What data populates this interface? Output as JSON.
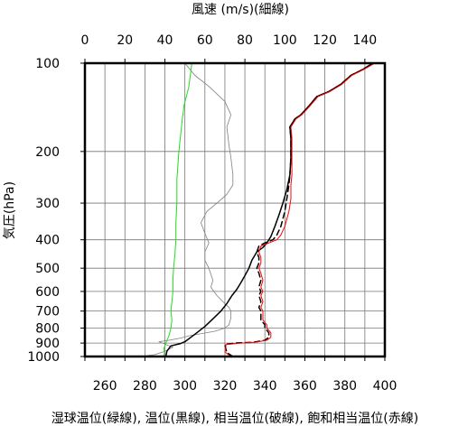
{
  "chart_data": {
    "type": "line",
    "title": "風速 (m/s)(細線)",
    "ylabel": "気圧(hPa)",
    "xlabel": "湿球温位(緑線), 温位(黒線), 相当温位(破線), 飽和相当温位(赤線)",
    "y_axis": {
      "scale": "log",
      "reversed": true,
      "ticks": [
        100,
        200,
        300,
        400,
        500,
        600,
        700,
        800,
        900,
        1000
      ],
      "ylim": [
        100,
        1000
      ]
    },
    "x_bottom": {
      "label_ticks": [
        260,
        280,
        300,
        320,
        340,
        360,
        380,
        400
      ],
      "grid_step": 10,
      "xlim": [
        250,
        400
      ]
    },
    "x_top": {
      "ticks": [
        0,
        20,
        40,
        60,
        80,
        100,
        120,
        140
      ],
      "xlim": [
        0,
        150
      ]
    },
    "grid": true,
    "series": [
      {
        "key": "wind",
        "axis": "top",
        "color": "#808080",
        "width": 0.8,
        "dash": "",
        "points": [
          [
            28,
            1000
          ],
          [
            35,
            985
          ],
          [
            40,
            960
          ],
          [
            44,
            930
          ],
          [
            37,
            890
          ],
          [
            42,
            880
          ],
          [
            48,
            865
          ],
          [
            52,
            850
          ],
          [
            65,
            820
          ],
          [
            70,
            800
          ],
          [
            72,
            780
          ],
          [
            73,
            740
          ],
          [
            73,
            700
          ],
          [
            72,
            680
          ],
          [
            70,
            660
          ],
          [
            66,
            620
          ],
          [
            63,
            580
          ],
          [
            64,
            550
          ],
          [
            62,
            500
          ],
          [
            60,
            470
          ],
          [
            60,
            440
          ],
          [
            62,
            410
          ],
          [
            60,
            380
          ],
          [
            58,
            350
          ],
          [
            61,
            320
          ],
          [
            66,
            300
          ],
          [
            71,
            280
          ],
          [
            74,
            260
          ],
          [
            74,
            240
          ],
          [
            73,
            210
          ],
          [
            72,
            190
          ],
          [
            71,
            165
          ],
          [
            73,
            150
          ],
          [
            70,
            135
          ],
          [
            62,
            120
          ],
          [
            55,
            110
          ],
          [
            50,
            100
          ]
        ]
      },
      {
        "key": "theta_w",
        "color": "#22dd22",
        "width": 1,
        "dash": "",
        "points": [
          [
            289.5,
            1000
          ],
          [
            289.8,
            970
          ],
          [
            289.5,
            940
          ],
          [
            290.5,
            900
          ],
          [
            292,
            850
          ],
          [
            293,
            800
          ],
          [
            293.5,
            750
          ],
          [
            293,
            700
          ],
          [
            293.5,
            650
          ],
          [
            294,
            600
          ],
          [
            294,
            550
          ],
          [
            294.3,
            500
          ],
          [
            295,
            450
          ],
          [
            295.5,
            400
          ],
          [
            295.5,
            350
          ],
          [
            296,
            300
          ],
          [
            296,
            250
          ],
          [
            297,
            200
          ],
          [
            298.5,
            160
          ],
          [
            299.5,
            140
          ],
          [
            302,
            120
          ],
          [
            303.5,
            100
          ]
        ]
      },
      {
        "key": "theta",
        "color": "#000000",
        "width": 1.5,
        "dash": "",
        "points": [
          [
            290.5,
            1000
          ],
          [
            291,
            960
          ],
          [
            293,
            920
          ],
          [
            297.5,
            905
          ],
          [
            300,
            890
          ],
          [
            303,
            860
          ],
          [
            306,
            830
          ],
          [
            310,
            790
          ],
          [
            313.5,
            750
          ],
          [
            318,
            700
          ],
          [
            321,
            660
          ],
          [
            323.5,
            620
          ],
          [
            326,
            590
          ],
          [
            328,
            560
          ],
          [
            330,
            530
          ],
          [
            332,
            500
          ],
          [
            333.5,
            470
          ],
          [
            336,
            440
          ],
          [
            339,
            425
          ],
          [
            341,
            410
          ],
          [
            343,
            390
          ],
          [
            345,
            360
          ],
          [
            347,
            330
          ],
          [
            349,
            300
          ],
          [
            351,
            270
          ],
          [
            352.5,
            240
          ],
          [
            353,
            210
          ],
          [
            353,
            180
          ],
          [
            352.5,
            165
          ],
          [
            355,
            155
          ],
          [
            358,
            150
          ],
          [
            362,
            140
          ],
          [
            366,
            130
          ],
          [
            372,
            125
          ],
          [
            378,
            118
          ],
          [
            383,
            110
          ],
          [
            389,
            105
          ],
          [
            394,
            100
          ]
        ]
      },
      {
        "key": "theta_e",
        "color": "#000000",
        "width": 1.5,
        "dash": "6,4",
        "points": [
          [
            324,
            1000
          ],
          [
            321,
            970
          ],
          [
            320.5,
            940
          ],
          [
            320,
            910
          ],
          [
            325,
            900
          ],
          [
            334,
            895
          ],
          [
            340,
            880
          ],
          [
            342,
            860
          ],
          [
            342,
            830
          ],
          [
            340,
            800
          ],
          [
            340,
            780
          ],
          [
            338,
            750
          ],
          [
            338,
            700
          ],
          [
            337,
            680
          ],
          [
            338,
            650
          ],
          [
            337,
            620
          ],
          [
            338,
            600
          ],
          [
            337,
            580
          ],
          [
            338,
            550
          ],
          [
            337,
            520
          ],
          [
            336,
            500
          ],
          [
            337,
            480
          ],
          [
            337,
            460
          ],
          [
            336,
            440
          ],
          [
            337,
            420
          ],
          [
            340,
            410
          ],
          [
            344,
            400
          ],
          [
            346,
            385
          ],
          [
            348,
            360
          ],
          [
            350,
            320
          ],
          [
            351,
            290
          ],
          [
            352,
            260
          ],
          [
            352.5,
            240
          ],
          [
            353,
            210
          ],
          [
            353,
            180
          ],
          [
            352.5,
            165
          ],
          [
            355,
            155
          ],
          [
            358,
            150
          ],
          [
            362,
            140
          ],
          [
            366,
            130
          ],
          [
            372,
            125
          ],
          [
            378,
            118
          ],
          [
            383,
            110
          ],
          [
            389,
            105
          ],
          [
            394,
            100
          ]
        ]
      },
      {
        "key": "theta_es",
        "color": "#ff0000",
        "width": 1,
        "dash": "",
        "points": [
          [
            323,
            1000
          ],
          [
            320,
            965
          ],
          [
            320.5,
            935
          ],
          [
            320.5,
            910
          ],
          [
            327,
            902
          ],
          [
            335,
            895
          ],
          [
            341,
            880
          ],
          [
            343,
            860
          ],
          [
            343,
            830
          ],
          [
            341,
            800
          ],
          [
            341,
            780
          ],
          [
            339,
            750
          ],
          [
            339,
            700
          ],
          [
            338,
            680
          ],
          [
            339,
            650
          ],
          [
            338,
            620
          ],
          [
            339,
            600
          ],
          [
            338,
            580
          ],
          [
            339,
            550
          ],
          [
            338,
            520
          ],
          [
            337,
            500
          ],
          [
            338,
            480
          ],
          [
            338,
            460
          ],
          [
            337,
            440
          ],
          [
            338,
            420
          ],
          [
            342,
            410
          ],
          [
            346,
            400
          ],
          [
            348,
            385
          ],
          [
            350,
            360
          ],
          [
            352,
            320
          ],
          [
            353,
            290
          ],
          [
            353,
            260
          ],
          [
            353.5,
            240
          ],
          [
            353.5,
            210
          ],
          [
            353.5,
            180
          ],
          [
            353,
            165
          ],
          [
            355.5,
            155
          ],
          [
            358.5,
            150
          ],
          [
            362.5,
            140
          ],
          [
            366.5,
            130
          ],
          [
            372.5,
            125
          ],
          [
            378.5,
            118
          ],
          [
            383.5,
            110
          ],
          [
            389.5,
            105
          ],
          [
            395,
            100
          ]
        ]
      }
    ]
  }
}
